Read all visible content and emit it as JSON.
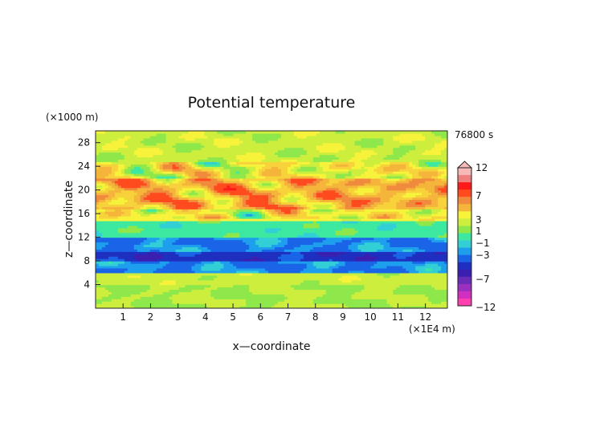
{
  "chart_data": {
    "type": "heatmap",
    "title": "Potential temperature",
    "xlabel": "x—coordinate",
    "ylabel": "z—coordinate",
    "x_unit": "(×1E4 m)",
    "y_unit": "(×1000 m)",
    "time_label": "76800 s",
    "xlim": [
      0,
      12.8
    ],
    "ylim": [
      0,
      30
    ],
    "xticks": [
      "1",
      "2",
      "3",
      "4",
      "5",
      "6",
      "7",
      "8",
      "9",
      "10",
      "11",
      "12"
    ],
    "yticks": [
      "4",
      "8",
      "12",
      "16",
      "20",
      "24",
      "28"
    ],
    "colorbar": {
      "labels": [
        "12",
        "7",
        "3",
        "1",
        "−1",
        "−3",
        "−7",
        "−12"
      ],
      "levels": [
        12,
        7,
        3,
        1,
        -1,
        -3,
        -7,
        -12
      ],
      "colors": [
        "#f7b8b8",
        "#f08080",
        "#ff1a1a",
        "#ff4b1f",
        "#f08a3c",
        "#f4b53a",
        "#f7f23a",
        "#cdee3d",
        "#8fe84b",
        "#3de8a0",
        "#33cfd6",
        "#1e9fee",
        "#1a64e8",
        "#1f2fbf",
        "#3a1fb0",
        "#6a2bb8",
        "#9a2fc0",
        "#d02fc0",
        "#ff3fb0"
      ]
    },
    "bands": [
      {
        "z": [
          0,
          4
        ],
        "level": 0
      },
      {
        "z": [
          4,
          6
        ],
        "level": 0.5
      },
      {
        "z": [
          6,
          12
        ],
        "level": -3
      },
      {
        "z": [
          12,
          15
        ],
        "level": -1.5
      },
      {
        "z": [
          15,
          17
        ],
        "level": 1.5
      },
      {
        "z": [
          17,
          22
        ],
        "level": 3.5
      },
      {
        "z": [
          22,
          25
        ],
        "level": 1.5
      },
      {
        "z": [
          25,
          30
        ],
        "level": 0.5
      }
    ]
  }
}
